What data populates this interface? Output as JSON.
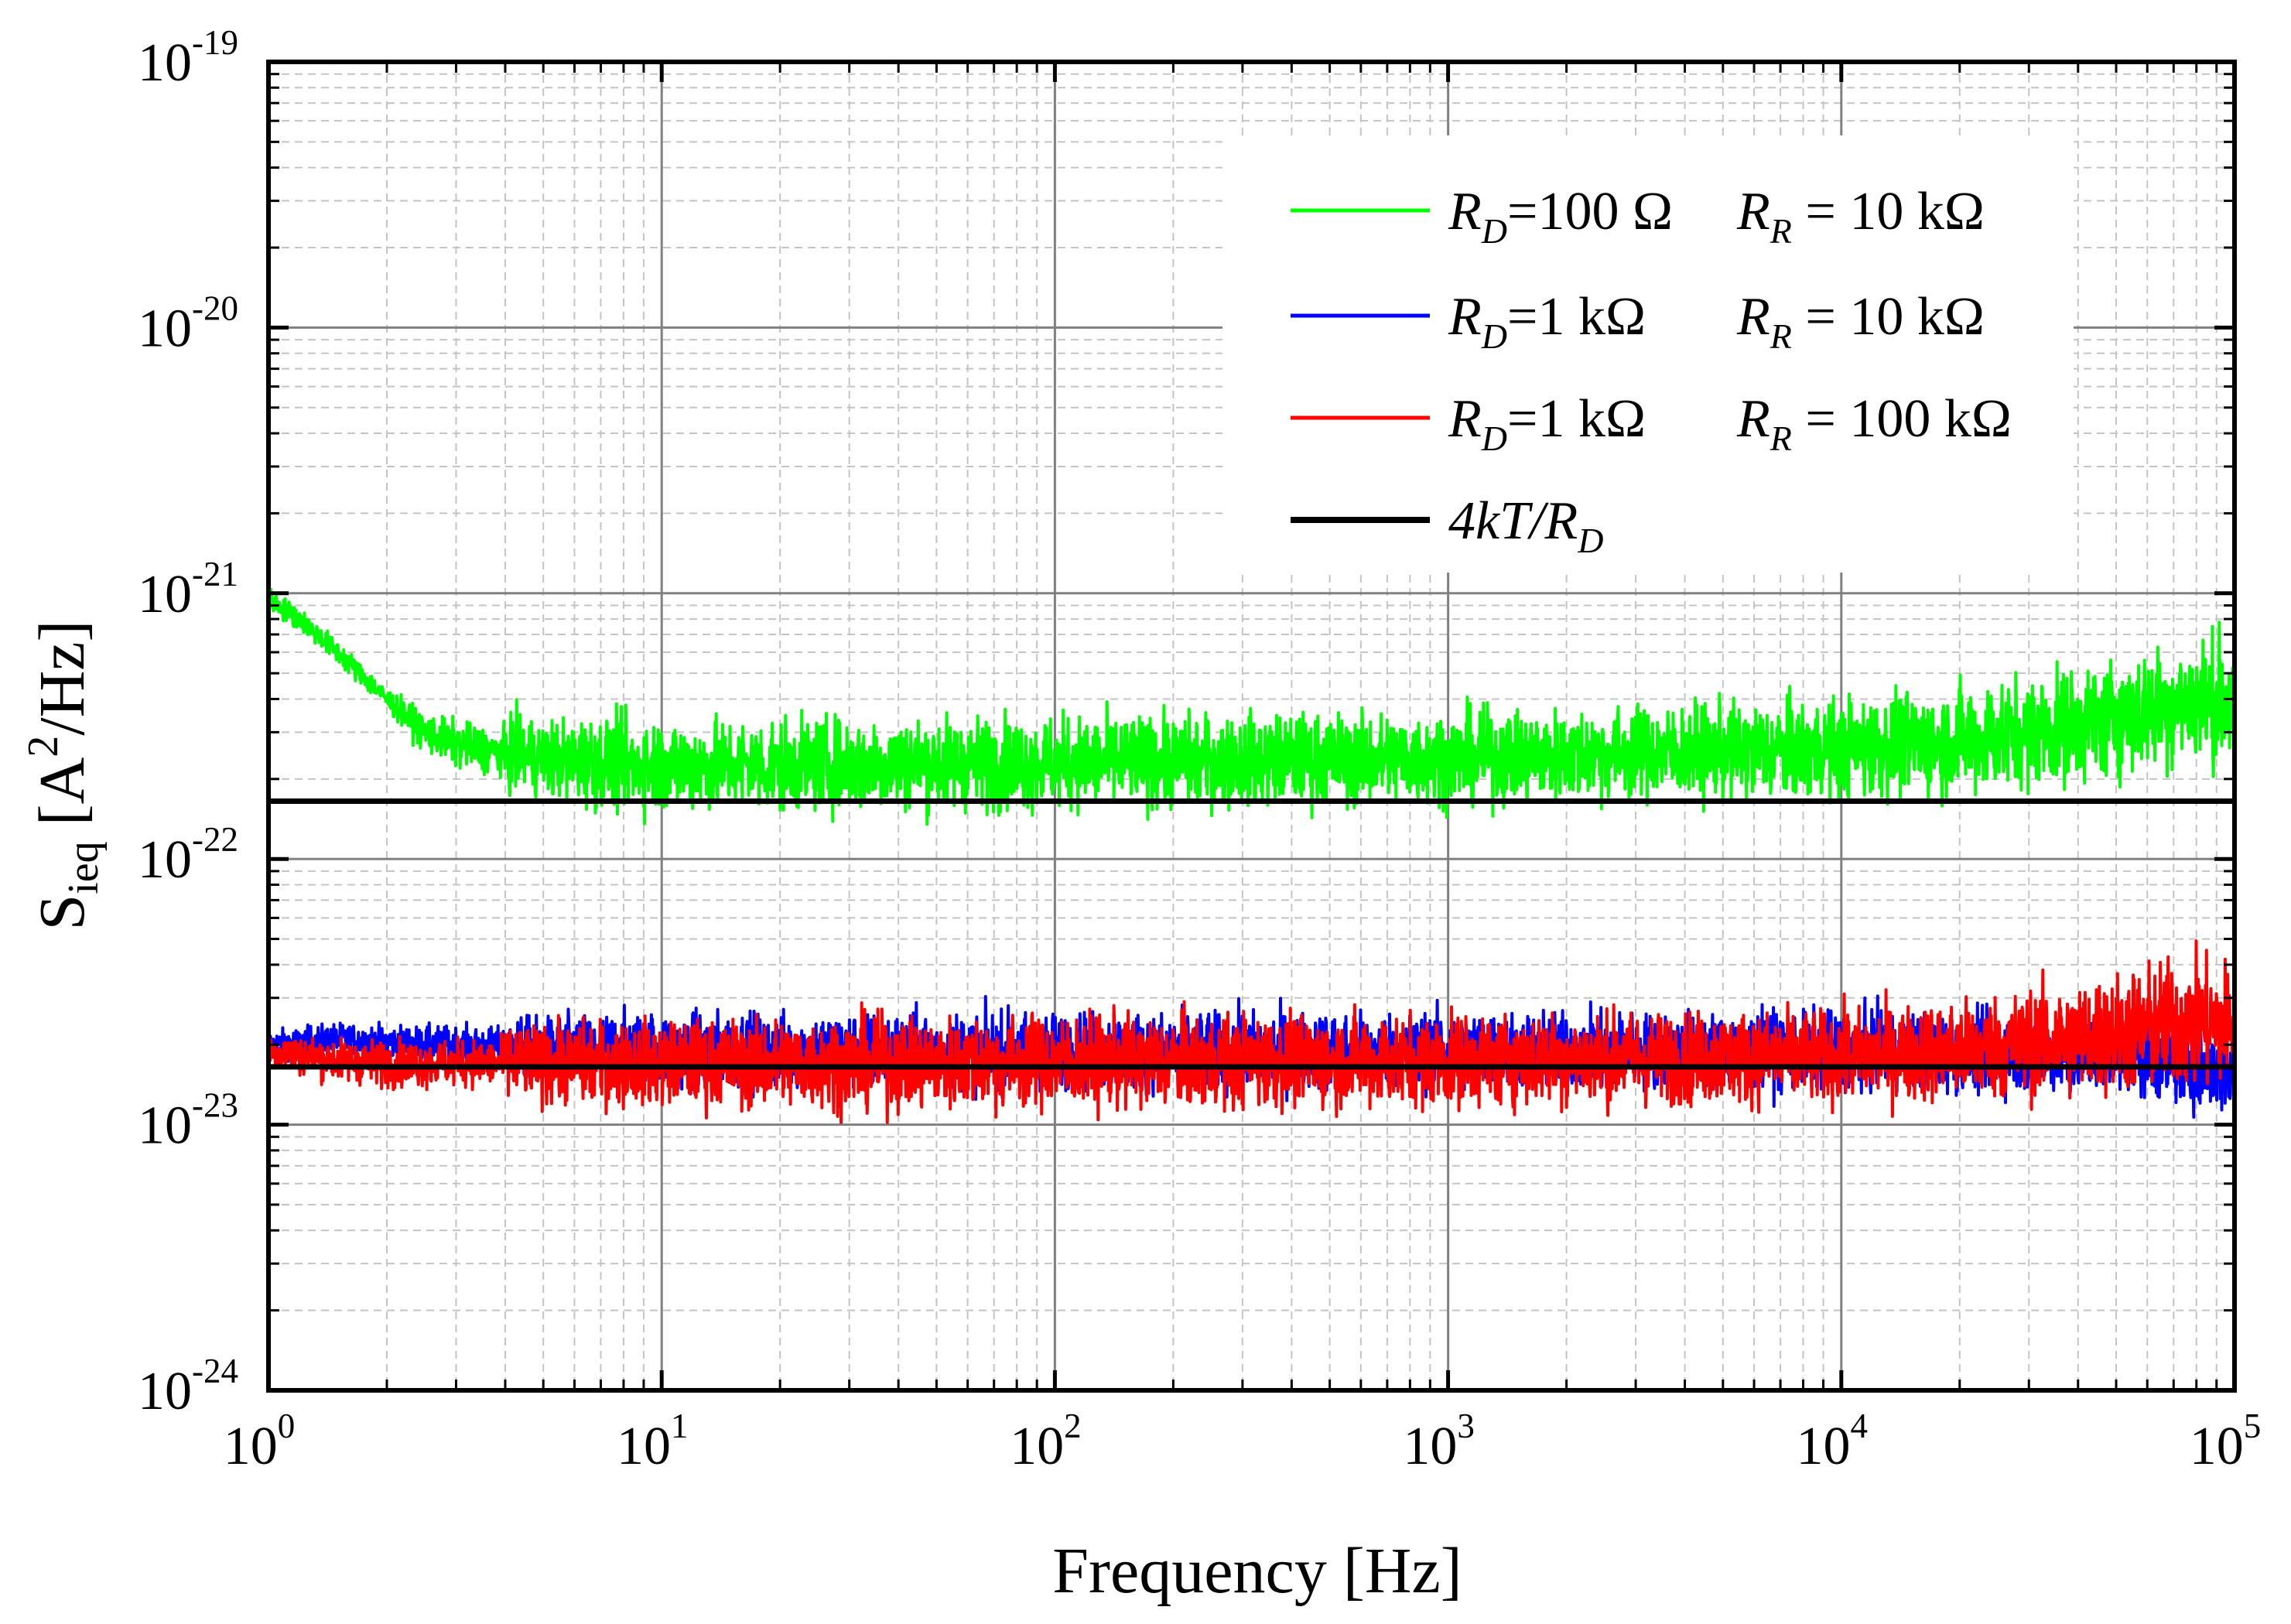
{
  "chart_data": {
    "type": "line",
    "xscale": "log",
    "yscale": "log",
    "xlim": [
      1,
      100000
    ],
    "ylim": [
      1e-24,
      1e-19
    ],
    "xlabel": "Frequency [Hz]",
    "ylabel": {
      "main": "S",
      "sub": "ieq",
      "text": "[A",
      "sup": "2",
      "end": "/Hz]"
    },
    "x_ticks": [
      {
        "base": "10",
        "exp": "0"
      },
      {
        "base": "10",
        "exp": "1"
      },
      {
        "base": "10",
        "exp": "2"
      },
      {
        "base": "10",
        "exp": "3"
      },
      {
        "base": "10",
        "exp": "4"
      },
      {
        "base": "10",
        "exp": "5"
      }
    ],
    "y_ticks": [
      {
        "base": "10",
        "exp": "-24"
      },
      {
        "base": "10",
        "exp": "-23"
      },
      {
        "base": "10",
        "exp": "-22"
      },
      {
        "base": "10",
        "exp": "-21"
      },
      {
        "base": "10",
        "exp": "-20"
      },
      {
        "base": "10",
        "exp": "-19"
      }
    ],
    "grid": true,
    "legend_position": "top-right",
    "series": [
      {
        "name": "RD=100 Ω RR=10 kΩ",
        "color": "#00ff00",
        "legend": {
          "a": "R",
          "a_sub": "D",
          "a_val": "=100 Ω",
          "b": "R",
          "b_sub": "R",
          "b_val": " = 10 kΩ"
        },
        "x": [
          1,
          1.2,
          1.5,
          2,
          2.5,
          3,
          4,
          5,
          7,
          10,
          20,
          50,
          100,
          300,
          1000,
          3000,
          10000,
          20000,
          40000,
          70000,
          90000,
          100000
        ],
        "y": [
          9.5e-22,
          8e-22,
          6e-22,
          4e-22,
          3e-22,
          2.7e-22,
          2.5e-22,
          2.4e-22,
          2.3e-22,
          2.25e-22,
          2.25e-22,
          2.3e-22,
          2.3e-22,
          2.35e-22,
          2.4e-22,
          2.5e-22,
          2.6e-22,
          2.8e-22,
          3.2e-22,
          3.8e-22,
          4.1e-22,
          3.6e-22
        ],
        "noise": [
          0.05,
          0.05,
          0.05,
          0.05,
          0.08,
          0.1,
          0.1,
          0.1,
          0.12,
          0.12,
          0.12,
          0.12,
          0.12,
          0.12,
          0.12,
          0.12,
          0.13,
          0.14,
          0.15,
          0.16,
          0.17,
          0.17
        ]
      },
      {
        "name": "RD=1 kΩ RR=10 kΩ",
        "color": "#0000ff",
        "legend": {
          "a": "R",
          "a_sub": "D",
          "a_val": "=1 kΩ",
          "b": "R",
          "b_sub": "R",
          "b_val": " = 10 kΩ"
        },
        "x": [
          1,
          1.5,
          2,
          3,
          5,
          7,
          10,
          30,
          100,
          1000,
          10000,
          30000,
          50000,
          70000,
          100000
        ],
        "y": [
          2e-23,
          2.1e-23,
          2.05e-23,
          2e-23,
          1.95e-23,
          1.95e-23,
          1.9e-23,
          1.9e-23,
          1.9e-23,
          1.9e-23,
          1.9e-23,
          1.85e-23,
          1.8e-23,
          1.75e-23,
          1.6e-23
        ],
        "noise": [
          0.06,
          0.07,
          0.07,
          0.08,
          0.08,
          0.09,
          0.1,
          0.1,
          0.1,
          0.1,
          0.1,
          0.1,
          0.1,
          0.11,
          0.12
        ]
      },
      {
        "name": "RD=1 kΩ RR=100 kΩ",
        "color": "#ff0000",
        "legend": {
          "a": "R",
          "a_sub": "D",
          "a_val": "=1 kΩ",
          "b": "R",
          "b_sub": "R",
          "b_val": " = 100 kΩ"
        },
        "x": [
          1,
          1.5,
          2,
          3,
          5,
          7,
          10,
          30,
          100,
          1000,
          10000,
          20000,
          40000,
          70000,
          100000
        ],
        "y": [
          1.9e-23,
          1.75e-23,
          1.7e-23,
          1.7e-23,
          1.7e-23,
          1.7e-23,
          1.7e-23,
          1.7e-23,
          1.72e-23,
          1.75e-23,
          1.8e-23,
          1.9e-23,
          2.1e-23,
          2.4e-23,
          2.4e-23
        ],
        "noise": [
          0.08,
          0.09,
          0.1,
          0.1,
          0.1,
          0.11,
          0.11,
          0.12,
          0.12,
          0.12,
          0.12,
          0.13,
          0.15,
          0.17,
          0.17
        ]
      }
    ],
    "reference_lines": [
      {
        "name": "4kT/RD (RD=100 Ω)",
        "color": "#000000",
        "legend": {
          "a": "4kT/R",
          "a_sub": "D"
        },
        "y": 1.65e-22
      },
      {
        "name": "4kT/RD (RD=1 kΩ)",
        "color": "#000000",
        "y": 1.65e-23
      }
    ]
  }
}
